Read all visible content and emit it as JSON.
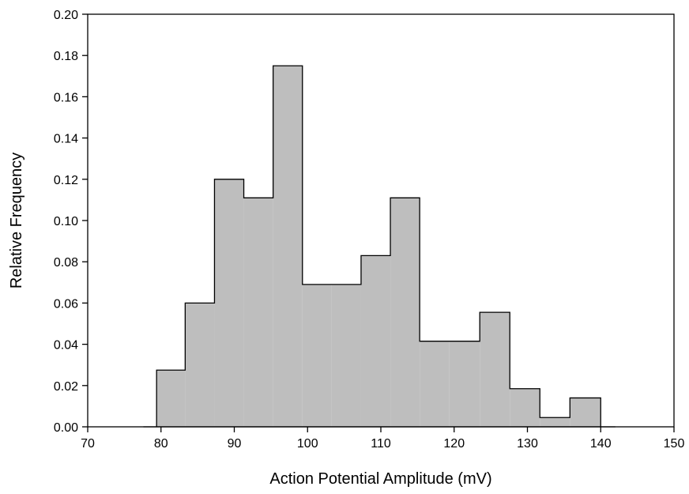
{
  "chart_data": {
    "type": "bar",
    "subtype": "histogram-step",
    "xlabel": "Action Potential Amplitude (mV)",
    "ylabel": "Relative Frequency",
    "xlim": [
      70,
      150
    ],
    "ylim": [
      0,
      0.2
    ],
    "xticks": [
      "70",
      "80",
      "90",
      "100",
      "110",
      "120",
      "130",
      "140",
      "150"
    ],
    "yticks": [
      "0.00",
      "0.02",
      "0.04",
      "0.06",
      "0.08",
      "0.10",
      "0.12",
      "0.14",
      "0.16",
      "0.18",
      "0.20"
    ],
    "bins": [
      {
        "start": 79.4,
        "end": 83.3,
        "value": 0.0275
      },
      {
        "start": 83.3,
        "end": 87.3,
        "value": 0.06
      },
      {
        "start": 87.3,
        "end": 91.3,
        "value": 0.12
      },
      {
        "start": 91.3,
        "end": 95.3,
        "value": 0.111
      },
      {
        "start": 95.3,
        "end": 99.3,
        "value": 0.175
      },
      {
        "start": 99.3,
        "end": 103.3,
        "value": 0.069
      },
      {
        "start": 103.3,
        "end": 107.3,
        "value": 0.069
      },
      {
        "start": 107.3,
        "end": 111.3,
        "value": 0.083
      },
      {
        "start": 111.3,
        "end": 115.3,
        "value": 0.111
      },
      {
        "start": 115.3,
        "end": 119.3,
        "value": 0.0415
      },
      {
        "start": 119.3,
        "end": 123.5,
        "value": 0.0415
      },
      {
        "start": 123.5,
        "end": 127.6,
        "value": 0.0555
      },
      {
        "start": 127.6,
        "end": 131.7,
        "value": 0.0185
      },
      {
        "start": 131.7,
        "end": 135.8,
        "value": 0.0045
      },
      {
        "start": 135.8,
        "end": 140.0,
        "value": 0.014
      }
    ],
    "baseline_range": [
      77.6,
      142.0
    ],
    "fill_color": "#bebebe",
    "edge_color": "#000000",
    "grid": false
  }
}
